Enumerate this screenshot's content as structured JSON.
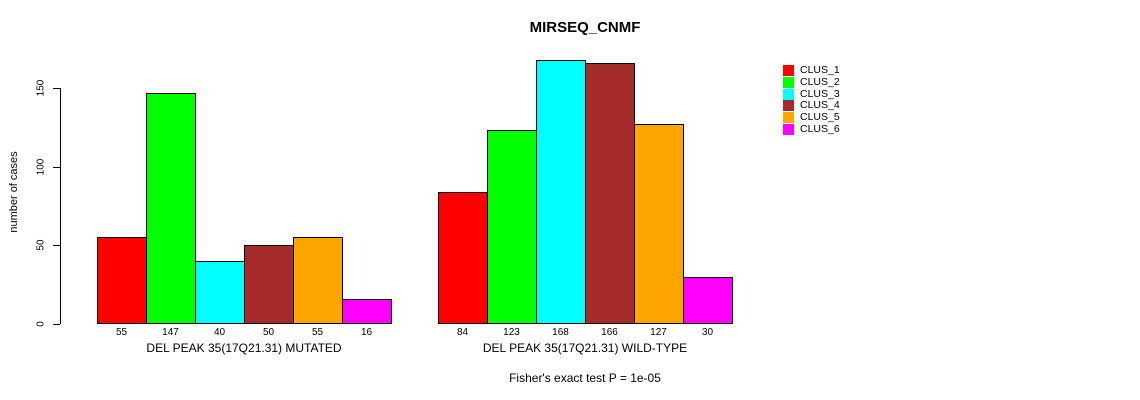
{
  "title": "MIRSEQ_CNMF",
  "chart_data": {
    "type": "bar",
    "title": "MIRSEQ_CNMF",
    "ylabel": "number of cases",
    "xlabel": "",
    "yticks": [
      0,
      50,
      100,
      150
    ],
    "ylim": [
      0,
      168
    ],
    "grid": false,
    "legend_position": "right",
    "bar_value_labels": true,
    "series_names": [
      "CLUS_1",
      "CLUS_2",
      "CLUS_3",
      "CLUS_4",
      "CLUS_5",
      "CLUS_6"
    ],
    "series_colors": [
      "#FF0000",
      "#00FF00",
      "#00FFFF",
      "#A52A2A",
      "#FFA500",
      "#FF00FF"
    ],
    "groups": [
      {
        "label": "DEL PEAK 35(17Q21.31) MUTATED",
        "values": [
          55,
          147,
          40,
          50,
          55,
          16
        ]
      },
      {
        "label": "DEL PEAK 35(17Q21.31) WILD-TYPE",
        "values": [
          84,
          123,
          168,
          166,
          127,
          30
        ]
      }
    ],
    "annotation": "Fisher's exact test P = 1e-05"
  },
  "legend": {
    "items": [
      {
        "label": "CLUS_1",
        "color": "#FF0000"
      },
      {
        "label": "CLUS_2",
        "color": "#00FF00"
      },
      {
        "label": "CLUS_3",
        "color": "#00FFFF"
      },
      {
        "label": "CLUS_4",
        "color": "#A52A2A"
      },
      {
        "label": "CLUS_5",
        "color": "#FFA500"
      },
      {
        "label": "CLUS_6",
        "color": "#FF00FF"
      }
    ]
  }
}
